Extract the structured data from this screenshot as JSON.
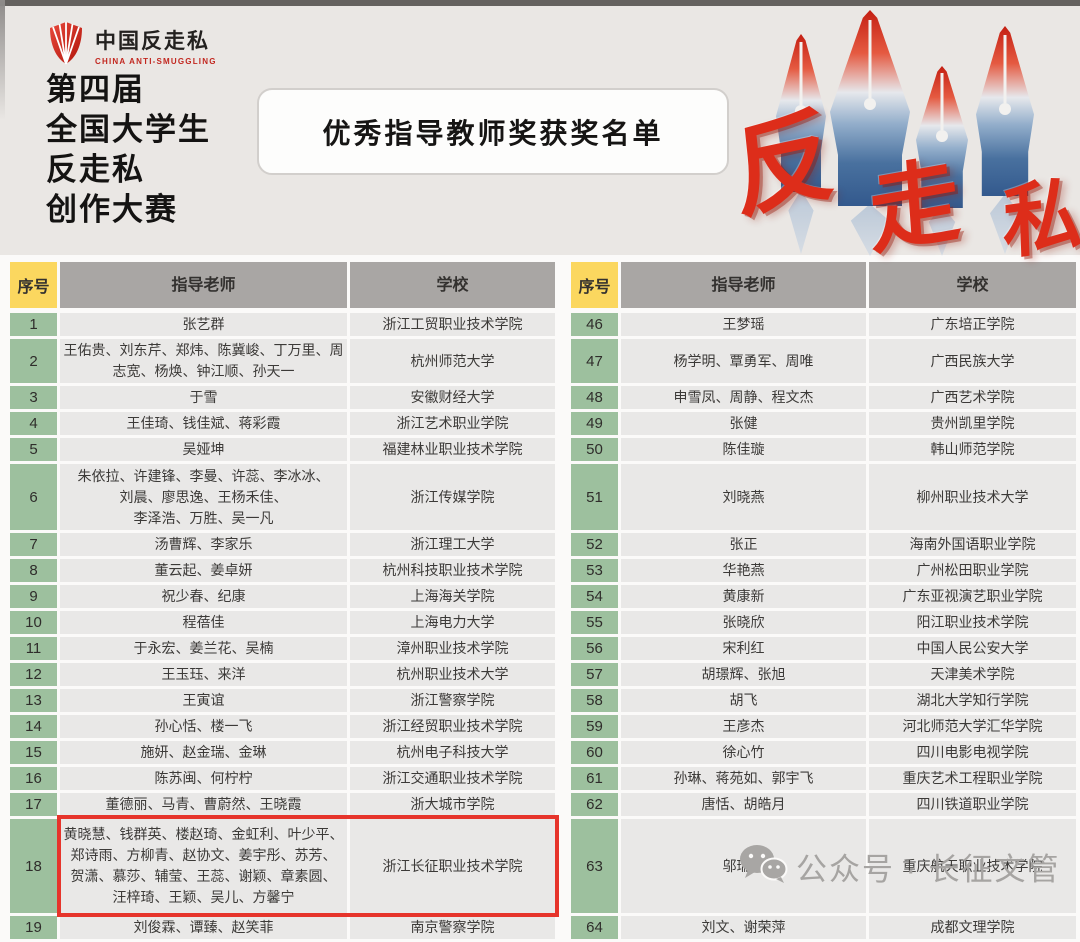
{
  "header": {
    "logo": {
      "name_cn": "中国反走私",
      "name_en": "CHINA ANTI-SMUGGLING"
    },
    "title_lines": [
      "第四届",
      "全国大学生",
      "反走私",
      "创作大赛"
    ],
    "award_title": "优秀指导教师奖获奖名单",
    "deco_chars": [
      "反",
      "走",
      "私"
    ]
  },
  "table": {
    "col_headers": {
      "no": "序号",
      "teacher": "指导老师",
      "school": "学校"
    },
    "rows": [
      {
        "lines": 1,
        "left": {
          "no": "1",
          "teachers": "张艺群",
          "school": "浙江工贸职业技术学院"
        },
        "right": {
          "no": "46",
          "teachers": "王梦瑶",
          "school": "广东培正学院"
        }
      },
      {
        "lines": 2,
        "left": {
          "no": "2",
          "teachers": "王佑贵、刘东芹、郑炜、陈冀峻、丁万里、周志宽、杨焕、钟江顺、孙天一",
          "school": "杭州师范大学"
        },
        "right": {
          "no": "47",
          "teachers": "杨学明、覃勇军、周唯",
          "school": "广西民族大学"
        }
      },
      {
        "lines": 1,
        "left": {
          "no": "3",
          "teachers": "于雪",
          "school": "安徽财经大学"
        },
        "right": {
          "no": "48",
          "teachers": "申雪凤、周静、程文杰",
          "school": "广西艺术学院"
        }
      },
      {
        "lines": 1,
        "left": {
          "no": "4",
          "teachers": "王佳琦、钱佳斌、蒋彩霞",
          "school": "浙江艺术职业学院"
        },
        "right": {
          "no": "49",
          "teachers": "张健",
          "school": "贵州凯里学院"
        }
      },
      {
        "lines": 1,
        "left": {
          "no": "5",
          "teachers": "吴娅坤",
          "school": "福建林业职业技术学院"
        },
        "right": {
          "no": "50",
          "teachers": "陈佳璇",
          "school": "韩山师范学院"
        }
      },
      {
        "lines": 3,
        "left": {
          "no": "6",
          "teachers": "朱依拉、许建锋、李曼、许蕊、李冰冰、\n刘晨、廖思逸、王杨禾佳、\n李泽浩、万胜、吴一凡",
          "school": "浙江传媒学院"
        },
        "right": {
          "no": "51",
          "teachers": "刘晓燕",
          "school": "柳州职业技术大学"
        }
      },
      {
        "lines": 1,
        "left": {
          "no": "7",
          "teachers": "汤曹辉、李家乐",
          "school": "浙江理工大学"
        },
        "right": {
          "no": "52",
          "teachers": "张正",
          "school": "海南外国语职业学院"
        }
      },
      {
        "lines": 1,
        "left": {
          "no": "8",
          "teachers": "董云起、姜卓妍",
          "school": "杭州科技职业技术学院"
        },
        "right": {
          "no": "53",
          "teachers": "华艳燕",
          "school": "广州松田职业学院"
        }
      },
      {
        "lines": 1,
        "left": {
          "no": "9",
          "teachers": "祝少春、纪康",
          "school": "上海海关学院"
        },
        "right": {
          "no": "54",
          "teachers": "黄康新",
          "school": "广东亚视演艺职业学院"
        }
      },
      {
        "lines": 1,
        "left": {
          "no": "10",
          "teachers": "程蓓佳",
          "school": "上海电力大学"
        },
        "right": {
          "no": "55",
          "teachers": "张晓欣",
          "school": "阳江职业技术学院"
        }
      },
      {
        "lines": 1,
        "left": {
          "no": "11",
          "teachers": "于永宏、姜兰花、吴楠",
          "school": "漳州职业技术学院"
        },
        "right": {
          "no": "56",
          "teachers": "宋利红",
          "school": "中国人民公安大学"
        }
      },
      {
        "lines": 1,
        "left": {
          "no": "12",
          "teachers": "王玉珏、来洋",
          "school": "杭州职业技术大学"
        },
        "right": {
          "no": "57",
          "teachers": "胡璟辉、张旭",
          "school": "天津美术学院"
        }
      },
      {
        "lines": 1,
        "left": {
          "no": "13",
          "teachers": "王寅谊",
          "school": "浙江警察学院"
        },
        "right": {
          "no": "58",
          "teachers": "胡飞",
          "school": "湖北大学知行学院"
        }
      },
      {
        "lines": 1,
        "left": {
          "no": "14",
          "teachers": "孙心恬、楼一飞",
          "school": "浙江经贸职业技术学院"
        },
        "right": {
          "no": "59",
          "teachers": "王彦杰",
          "school": "河北师范大学汇华学院"
        }
      },
      {
        "lines": 1,
        "left": {
          "no": "15",
          "teachers": "施妍、赵金瑞、金琳",
          "school": "杭州电子科技大学"
        },
        "right": {
          "no": "60",
          "teachers": "徐心竹",
          "school": "四川电影电视学院"
        }
      },
      {
        "lines": 1,
        "left": {
          "no": "16",
          "teachers": "陈苏闽、何柠柠",
          "school": "浙江交通职业技术学院"
        },
        "right": {
          "no": "61",
          "teachers": "孙琳、蒋苑如、郭宇飞",
          "school": "重庆艺术工程职业学院"
        }
      },
      {
        "lines": 1,
        "left": {
          "no": "17",
          "teachers": "董德丽、马青、曹蔚然、王晓霞",
          "school": "浙大城市学院"
        },
        "right": {
          "no": "62",
          "teachers": "唐恬、胡皓月",
          "school": "四川铁道职业学院"
        }
      },
      {
        "lines": 4,
        "highlight": true,
        "left": {
          "no": "18",
          "teachers": "黄晓慧、钱群英、楼赵琦、金虹利、叶少平、\n郑诗雨、方柳青、赵协文、姜宇彤、苏芳、\n贺潇、慕莎、辅莹、王蕊、谢颖、章素圆、\n汪梓琦、王颖、吴儿、方馨宁",
          "school": "浙江长征职业技术学院"
        },
        "right": {
          "no": "63",
          "teachers": "邬瑞瑶",
          "school": "重庆航天职业技术学院"
        }
      },
      {
        "lines": 1,
        "left": {
          "no": "19",
          "teachers": "刘俊霖、谭臻、赵笑菲",
          "school": "南京警察学院"
        },
        "right": {
          "no": "64",
          "teachers": "刘文、谢荣萍",
          "school": "成都文理学院"
        }
      }
    ]
  },
  "watermark": {
    "text": "公众号 · 长征文管"
  },
  "colors": {
    "accent_red": "#e6342b",
    "header_yellow": "#fbd75f",
    "header_gray": "#a9a6a4",
    "index_green": "#9dc09e",
    "cell_gray": "#e9e8e7",
    "banner_bg": "#eae7e4"
  }
}
